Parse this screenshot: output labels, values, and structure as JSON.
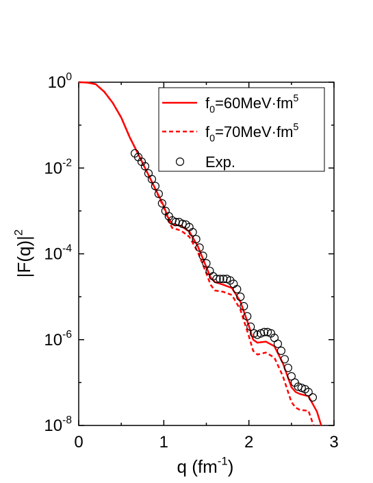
{
  "chart_data": {
    "type": "line",
    "x_label": "q (fm^{-1})",
    "y_label": "|F(q)|^{2}",
    "xlim": [
      0,
      3
    ],
    "xticks": [
      0,
      1,
      2,
      3
    ],
    "ylim": [
      1e-08,
      1
    ],
    "yscale": "log",
    "yticks": [
      {
        "value": 1,
        "label": "10^{0}"
      },
      {
        "value": 0.01,
        "label": "10^{-2}"
      },
      {
        "value": 0.0001,
        "label": "10^{-4}"
      },
      {
        "value": 1e-06,
        "label": "10^{-6}"
      },
      {
        "value": 1e-08,
        "label": "10^{-8}"
      }
    ],
    "legend": "upper right",
    "series": [
      {
        "name": "f_{0}=60MeV·fm^{5}",
        "color": "#ff0000",
        "style": "solid",
        "x": [
          0,
          0.1,
          0.2,
          0.3,
          0.4,
          0.5,
          0.6,
          0.7,
          0.8,
          0.9,
          1.0,
          1.05,
          1.1,
          1.2,
          1.3,
          1.4,
          1.5,
          1.55,
          1.6,
          1.7,
          1.8,
          1.9,
          2.0,
          2.05,
          2.1,
          2.2,
          2.3,
          2.4,
          2.5,
          2.55,
          2.6,
          2.7,
          2.8,
          2.85
        ],
        "values": [
          1.0,
          0.98,
          0.9,
          0.6,
          0.33,
          0.15,
          0.052,
          0.021,
          0.0083,
          0.0033,
          0.0013,
          0.0007,
          0.00049,
          0.00045,
          0.00033,
          0.00015,
          4.9e-05,
          2.8e-05,
          2.2e-05,
          1.9e-05,
          1.6e-05,
          7.7e-06,
          2.1e-06,
          1e-06,
          8.5e-07,
          9e-07,
          7e-07,
          2.8e-07,
          7.8e-08,
          6e-08,
          5.4e-08,
          4.8e-08,
          2.1e-08,
          1e-08
        ]
      },
      {
        "name": "f_{0}=70MeV·fm^{5}",
        "color": "#ff0000",
        "style": "dashed",
        "x": [
          0,
          0.1,
          0.2,
          0.3,
          0.4,
          0.5,
          0.6,
          0.7,
          0.8,
          0.9,
          1.0,
          1.05,
          1.1,
          1.2,
          1.3,
          1.4,
          1.5,
          1.55,
          1.6,
          1.7,
          1.8,
          1.9,
          2.0,
          2.05,
          2.1,
          2.2,
          2.3,
          2.4,
          2.5,
          2.55,
          2.6,
          2.7,
          2.76
        ],
        "values": [
          1.0,
          0.98,
          0.9,
          0.6,
          0.33,
          0.15,
          0.052,
          0.021,
          0.0082,
          0.0032,
          0.0012,
          0.0006,
          0.0004,
          0.00035,
          0.00025,
          0.00011,
          3.5e-05,
          1.9e-05,
          1.4e-05,
          1.3e-05,
          1.1e-05,
          5e-06,
          1.2e-06,
          5.5e-07,
          4.5e-07,
          5e-07,
          3.8e-07,
          1.4e-07,
          3.5e-08,
          2.6e-08,
          2.3e-08,
          2.2e-08,
          1e-08
        ]
      },
      {
        "name": "Exp.",
        "color": "#000000",
        "style": "markers",
        "x": [
          0.66,
          0.7,
          0.74,
          0.78,
          0.82,
          0.86,
          0.9,
          0.94,
          0.98,
          1.02,
          1.06,
          1.1,
          1.14,
          1.18,
          1.22,
          1.26,
          1.3,
          1.34,
          1.38,
          1.42,
          1.46,
          1.5,
          1.54,
          1.58,
          1.62,
          1.66,
          1.7,
          1.74,
          1.78,
          1.82,
          1.86,
          1.9,
          1.94,
          1.98,
          2.02,
          2.06,
          2.1,
          2.14,
          2.18,
          2.22,
          2.26,
          2.3,
          2.34,
          2.38,
          2.42,
          2.46,
          2.5,
          2.54,
          2.58,
          2.62,
          2.66,
          2.7,
          2.75
        ],
        "values": [
          0.022,
          0.018,
          0.014,
          0.011,
          0.0075,
          0.0055,
          0.0038,
          0.0025,
          0.0015,
          0.001,
          0.00075,
          0.0006,
          0.00055,
          0.00055,
          0.0005,
          0.00048,
          0.00042,
          0.00032,
          0.00022,
          0.00014,
          9e-05,
          6e-05,
          4e-05,
          3e-05,
          2.6e-05,
          2.6e-05,
          2.6e-05,
          2.6e-05,
          2.4e-05,
          2e-05,
          1.5e-05,
          1e-05,
          6e-06,
          3.5e-06,
          2e-06,
          1.4e-06,
          1.3e-06,
          1.4e-06,
          1.5e-06,
          1.5e-06,
          1.4e-06,
          1.1e-06,
          8e-07,
          5.5e-07,
          3.5e-07,
          2.2e-07,
          1.4e-07,
          1e-07,
          8e-08,
          7.5e-08,
          7e-08,
          6e-08,
          4.5e-08
        ]
      }
    ]
  }
}
